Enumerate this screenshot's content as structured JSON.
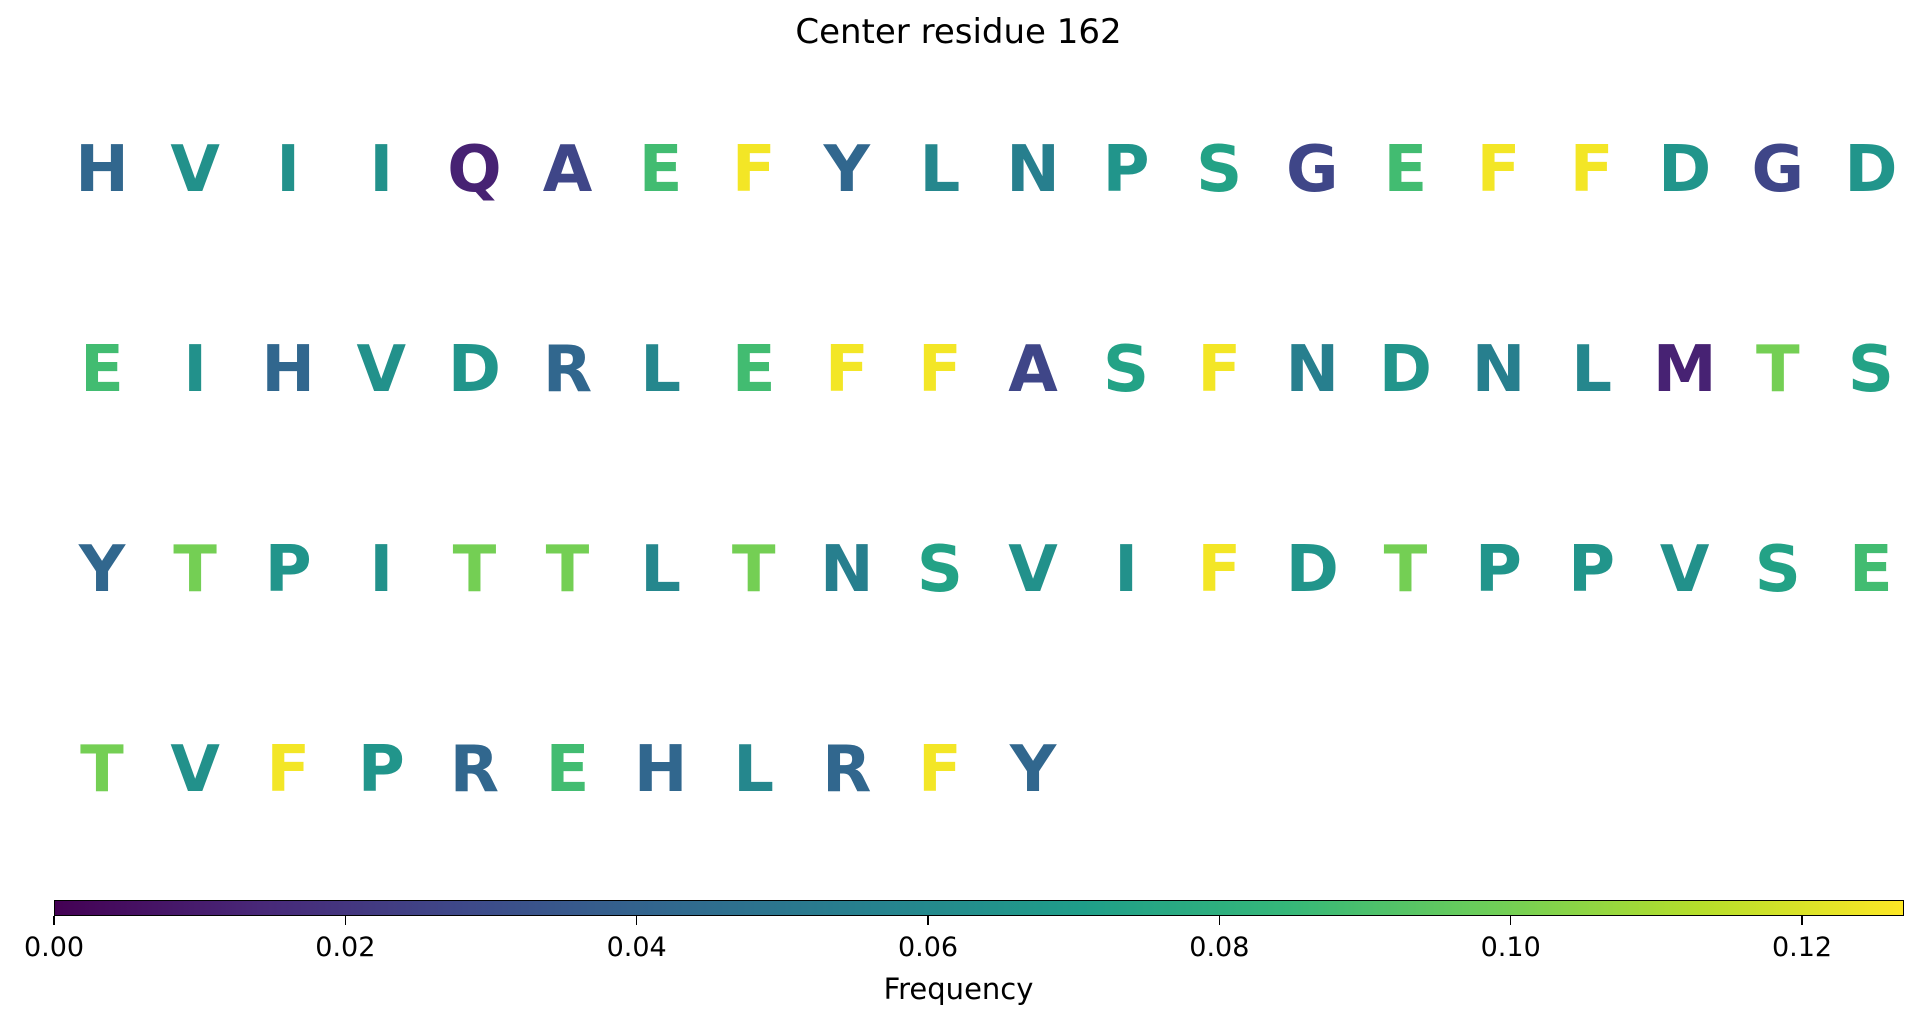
{
  "chart_data": {
    "type": "heatmap",
    "title": "Center residue 162",
    "colorbar": {
      "label": "Frequency",
      "colormap": "viridis",
      "range": [
        0,
        0.127
      ],
      "ticks": [
        "0.00",
        "0.02",
        "0.04",
        "0.06",
        "0.08",
        "0.10",
        "0.12"
      ]
    },
    "rows": [
      {
        "residues": [
          "H",
          "V",
          "I",
          "I",
          "Q",
          "A",
          "E",
          "F",
          "Y",
          "L",
          "N",
          "P",
          "S",
          "G",
          "E",
          "F",
          "F",
          "D",
          "G",
          "D"
        ],
        "frequencies": [
          0.042,
          0.064,
          0.064,
          0.064,
          0.012,
          0.027,
          0.088,
          0.125,
          0.042,
          0.059,
          0.055,
          0.066,
          0.073,
          0.027,
          0.088,
          0.125,
          0.125,
          0.066,
          0.027,
          0.066
        ]
      },
      {
        "residues": [
          "E",
          "I",
          "H",
          "V",
          "D",
          "R",
          "L",
          "E",
          "F",
          "F",
          "A",
          "S",
          "F",
          "N",
          "D",
          "N",
          "L",
          "M",
          "T",
          "S"
        ],
        "frequencies": [
          0.088,
          0.064,
          0.042,
          0.064,
          0.066,
          0.042,
          0.059,
          0.088,
          0.125,
          0.125,
          0.027,
          0.073,
          0.125,
          0.055,
          0.066,
          0.055,
          0.059,
          0.012,
          0.1,
          0.073
        ]
      },
      {
        "residues": [
          "Y",
          "T",
          "P",
          "I",
          "T",
          "T",
          "L",
          "T",
          "N",
          "S",
          "V",
          "I",
          "F",
          "D",
          "T",
          "P",
          "P",
          "V",
          "S",
          "E"
        ],
        "frequencies": [
          0.042,
          0.1,
          0.066,
          0.064,
          0.1,
          0.1,
          0.059,
          0.1,
          0.055,
          0.073,
          0.064,
          0.064,
          0.125,
          0.066,
          0.1,
          0.066,
          0.066,
          0.064,
          0.073,
          0.088
        ]
      },
      {
        "residues": [
          "T",
          "V",
          "F",
          "P",
          "R",
          "E",
          "H",
          "L",
          "R",
          "F",
          "Y"
        ],
        "frequencies": [
          0.1,
          0.064,
          0.125,
          0.066,
          0.042,
          0.088,
          0.042,
          0.059,
          0.042,
          0.125,
          0.042
        ]
      }
    ]
  }
}
